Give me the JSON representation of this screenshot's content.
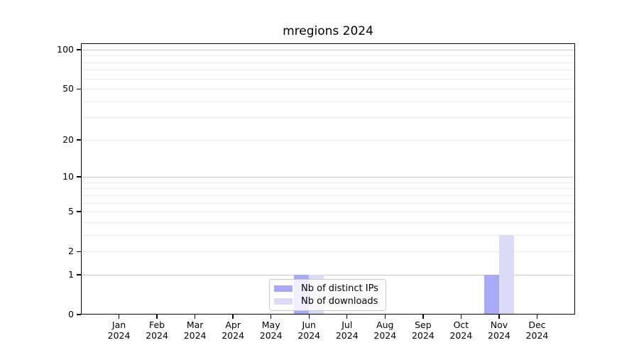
{
  "title": "mregions 2024",
  "chart_data": {
    "type": "bar",
    "title": "mregions 2024",
    "categories": [
      "Jan",
      "Feb",
      "Mar",
      "Apr",
      "May",
      "Jun",
      "Jul",
      "Aug",
      "Sep",
      "Oct",
      "Nov",
      "Dec"
    ],
    "x_year_label": "2024",
    "series": [
      {
        "name": "Nb of distinct IPs",
        "color": "#a9a9f6",
        "values": [
          0,
          0,
          0,
          0,
          0,
          1,
          0,
          0,
          0,
          0,
          1,
          0
        ]
      },
      {
        "name": "Nb of downloads",
        "color": "#dbdbf8",
        "values": [
          0,
          0,
          0,
          0,
          0,
          1,
          0,
          0,
          0,
          0,
          3,
          0
        ]
      }
    ],
    "yscale": "log1p",
    "yticks": [
      0,
      1,
      2,
      5,
      10,
      20,
      50,
      100
    ],
    "ylim": [
      0,
      112
    ],
    "grid": "both",
    "legend_position": "inside-bottom-center-left",
    "gridline_values_major": [
      1,
      10,
      100
    ],
    "gridline_values_minor": [
      2,
      3,
      4,
      5,
      6,
      7,
      8,
      9,
      20,
      30,
      40,
      50,
      60,
      70,
      80,
      90
    ]
  },
  "colors": {
    "bar_distinct_ips": "#a9a9f6",
    "bar_downloads": "#dbdbf8",
    "grid_major": "#c6c6c6",
    "grid_minor": "#e9e9e9",
    "axis": "#000000",
    "background": "#ffffff"
  }
}
